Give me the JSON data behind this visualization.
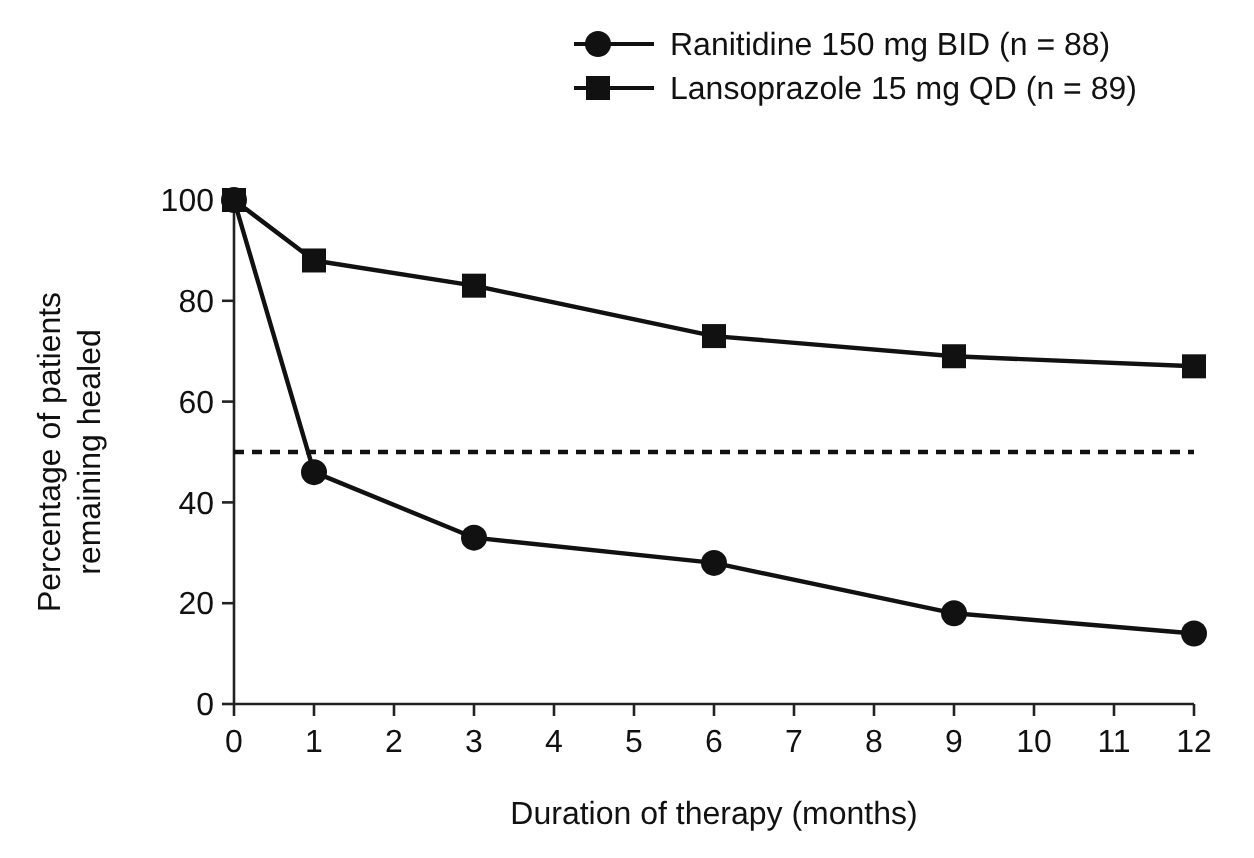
{
  "chart_data": {
    "type": "line",
    "xlabel": "Duration of therapy (months)",
    "ylabel": "Percentage of patients remaining healed",
    "x": [
      0,
      1,
      3,
      6,
      9,
      12
    ],
    "xlim": [
      0,
      12
    ],
    "xticks": [
      0,
      1,
      2,
      3,
      4,
      5,
      6,
      7,
      8,
      9,
      10,
      11,
      12
    ],
    "ylim": [
      0,
      100
    ],
    "yticks": [
      0,
      20,
      40,
      60,
      80,
      100
    ],
    "series": [
      {
        "name": "Ranitidine 150 mg BID (n = 88)",
        "color": "#111111",
        "marker": "circle",
        "values": [
          100,
          46,
          33,
          28,
          18,
          14
        ]
      },
      {
        "name": "Lansoprazole 15 mg QD (n = 89)",
        "color": "#111111",
        "marker": "square",
        "values": [
          100,
          88,
          83,
          73,
          69,
          67
        ]
      }
    ],
    "ref_lines": [
      {
        "axis": "y",
        "value": 50,
        "line_style": "dashed",
        "color": "#111111"
      }
    ],
    "legend": "top right",
    "grid": false
  }
}
